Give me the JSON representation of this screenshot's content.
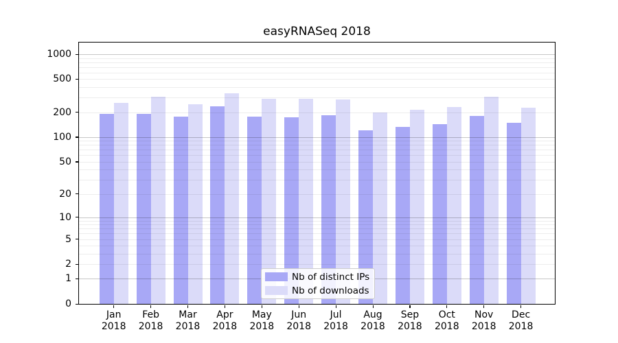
{
  "page": {
    "background": "#ffffff"
  },
  "chart_data": {
    "type": "bar",
    "title": "easyRNASeq 2018",
    "categories": [
      "Jan",
      "Feb",
      "Mar",
      "Apr",
      "May",
      "Jun",
      "Jul",
      "Aug",
      "Sep",
      "Oct",
      "Nov",
      "Dec"
    ],
    "category_year": "2018",
    "series": [
      {
        "name": "Nb of distinct IPs",
        "color": "#a8a8f6",
        "values": [
          190,
          191,
          178,
          234,
          178,
          174,
          184,
          120,
          132,
          143,
          180,
          150
        ]
      },
      {
        "name": "Nb of downloads",
        "color": "#dbdbf9",
        "values": [
          257,
          306,
          248,
          337,
          292,
          291,
          287,
          200,
          213,
          231,
          306,
          226
        ]
      }
    ],
    "xlabel": "",
    "ylabel": "",
    "yscale": "log1p",
    "ylim": [
      0,
      1001
    ],
    "yticks": [
      0,
      1,
      2,
      5,
      10,
      20,
      50,
      100,
      200,
      500,
      1000
    ],
    "grid": {
      "on": true,
      "major_at": [
        1,
        10,
        100,
        1000
      ],
      "minor_at": [
        2,
        3,
        4,
        5,
        6,
        7,
        8,
        9,
        20,
        30,
        40,
        50,
        60,
        70,
        80,
        90,
        200,
        300,
        400,
        500,
        600,
        700,
        800,
        900
      ],
      "major_color": "rgba(0,0,0,0.22)",
      "minor_color": "rgba(0,0,0,0.07)"
    },
    "legend_position": "inside bottom-center"
  }
}
